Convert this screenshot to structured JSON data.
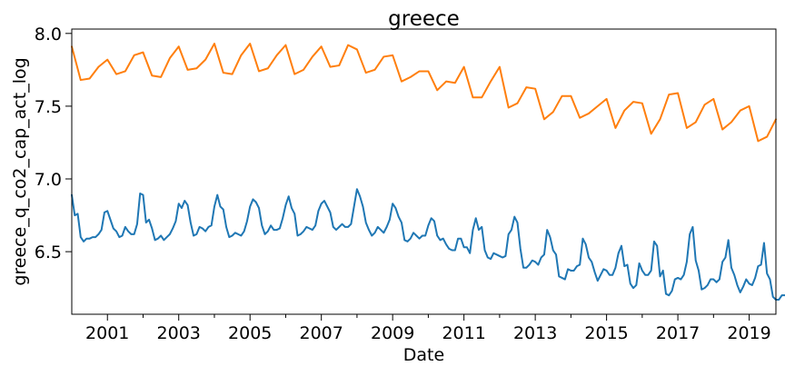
{
  "chart_data": {
    "type": "line",
    "title": "greece",
    "xlabel": "Date",
    "ylabel": "greece_q_co2_cap_act_log",
    "xlim": [
      2000.0,
      2019.75
    ],
    "ylim": [
      6.07,
      8.03
    ],
    "x_ticks": [
      {
        "value": 2001,
        "label": "2001"
      },
      {
        "value": 2003,
        "label": "2003"
      },
      {
        "value": 2005,
        "label": "2005"
      },
      {
        "value": 2007,
        "label": "2007"
      },
      {
        "value": 2009,
        "label": "2009"
      },
      {
        "value": 2011,
        "label": "2011"
      },
      {
        "value": 2013,
        "label": "2013"
      },
      {
        "value": 2015,
        "label": "2015"
      },
      {
        "value": 2017,
        "label": "2017"
      },
      {
        "value": 2019,
        "label": "2019"
      }
    ],
    "y_ticks": [
      {
        "value": 6.5,
        "label": "6.5"
      },
      {
        "value": 7.0,
        "label": "7.0"
      },
      {
        "value": 7.5,
        "label": "7.5"
      },
      {
        "value": 8.0,
        "label": "8.0"
      }
    ],
    "grid": false,
    "legend": "none",
    "series": [
      {
        "color": "#ff7f0e",
        "frequency": "quarterly",
        "start": 2000.0,
        "values": [
          7.91,
          7.68,
          7.69,
          7.77,
          7.82,
          7.72,
          7.74,
          7.85,
          7.87,
          7.71,
          7.7,
          7.83,
          7.91,
          7.75,
          7.76,
          7.82,
          7.93,
          7.73,
          7.72,
          7.85,
          7.93,
          7.74,
          7.76,
          7.85,
          7.92,
          7.72,
          7.75,
          7.84,
          7.91,
          7.77,
          7.78,
          7.92,
          7.89,
          7.73,
          7.75,
          7.84,
          7.85,
          7.67,
          7.7,
          7.74,
          7.74,
          7.61,
          7.67,
          7.66,
          7.77,
          7.56,
          7.56,
          7.67,
          7.77,
          7.49,
          7.52,
          7.63,
          7.62,
          7.41,
          7.46,
          7.57,
          7.57,
          7.42,
          7.45,
          7.5,
          7.55,
          7.35,
          7.47,
          7.53,
          7.52,
          7.31,
          7.41,
          7.58,
          7.59,
          7.35,
          7.39,
          7.51,
          7.55,
          7.34,
          7.39,
          7.47,
          7.5,
          7.26,
          7.29,
          7.41
        ]
      },
      {
        "color": "#1f77b4",
        "frequency": "monthly",
        "start": 2000.0,
        "values": [
          6.89,
          6.75,
          6.76,
          6.6,
          6.57,
          6.59,
          6.59,
          6.6,
          6.6,
          6.62,
          6.65,
          6.77,
          6.78,
          6.72,
          6.66,
          6.64,
          6.6,
          6.61,
          6.67,
          6.64,
          6.62,
          6.62,
          6.69,
          6.9,
          6.89,
          6.7,
          6.72,
          6.66,
          6.58,
          6.59,
          6.61,
          6.58,
          6.6,
          6.62,
          6.66,
          6.71,
          6.83,
          6.8,
          6.85,
          6.82,
          6.7,
          6.61,
          6.62,
          6.67,
          6.66,
          6.64,
          6.67,
          6.68,
          6.81,
          6.89,
          6.81,
          6.79,
          6.67,
          6.6,
          6.61,
          6.63,
          6.62,
          6.61,
          6.64,
          6.71,
          6.81,
          6.86,
          6.84,
          6.8,
          6.68,
          6.62,
          6.64,
          6.68,
          6.65,
          6.65,
          6.66,
          6.73,
          6.82,
          6.88,
          6.8,
          6.76,
          6.61,
          6.62,
          6.64,
          6.67,
          6.66,
          6.65,
          6.68,
          6.78,
          6.83,
          6.85,
          6.81,
          6.77,
          6.67,
          6.65,
          6.67,
          6.69,
          6.67,
          6.67,
          6.69,
          6.81,
          6.93,
          6.88,
          6.81,
          6.7,
          6.65,
          6.61,
          6.63,
          6.67,
          6.65,
          6.63,
          6.67,
          6.72,
          6.83,
          6.8,
          6.74,
          6.7,
          6.58,
          6.57,
          6.59,
          6.63,
          6.61,
          6.59,
          6.61,
          6.61,
          6.68,
          6.73,
          6.71,
          6.61,
          6.58,
          6.59,
          6.55,
          6.52,
          6.51,
          6.51,
          6.59,
          6.59,
          6.53,
          6.53,
          6.49,
          6.65,
          6.73,
          6.65,
          6.67,
          6.51,
          6.46,
          6.45,
          6.49,
          6.48,
          6.47,
          6.46,
          6.47,
          6.62,
          6.65,
          6.74,
          6.7,
          6.52,
          6.39,
          6.39,
          6.41,
          6.44,
          6.43,
          6.41,
          6.46,
          6.48,
          6.65,
          6.6,
          6.51,
          6.48,
          6.33,
          6.32,
          6.31,
          6.38,
          6.37,
          6.37,
          6.4,
          6.41,
          6.59,
          6.55,
          6.46,
          6.43,
          6.36,
          6.3,
          6.34,
          6.38,
          6.37,
          6.34,
          6.34,
          6.39,
          6.49,
          6.54,
          6.4,
          6.41,
          6.28,
          6.25,
          6.27,
          6.42,
          6.37,
          6.34,
          6.34,
          6.37,
          6.57,
          6.54,
          6.33,
          6.37,
          6.21,
          6.2,
          6.23,
          6.31,
          6.32,
          6.31,
          6.34,
          6.43,
          6.62,
          6.67,
          6.44,
          6.37,
          6.24,
          6.25,
          6.27,
          6.31,
          6.31,
          6.29,
          6.31,
          6.43,
          6.46,
          6.58,
          6.39,
          6.34,
          6.27,
          6.22,
          6.26,
          6.31,
          6.28,
          6.27,
          6.32,
          6.4,
          6.41,
          6.56,
          6.35,
          6.31,
          6.19,
          6.17,
          6.17,
          6.2,
          6.2,
          6.2,
          6.24
        ]
      }
    ]
  }
}
